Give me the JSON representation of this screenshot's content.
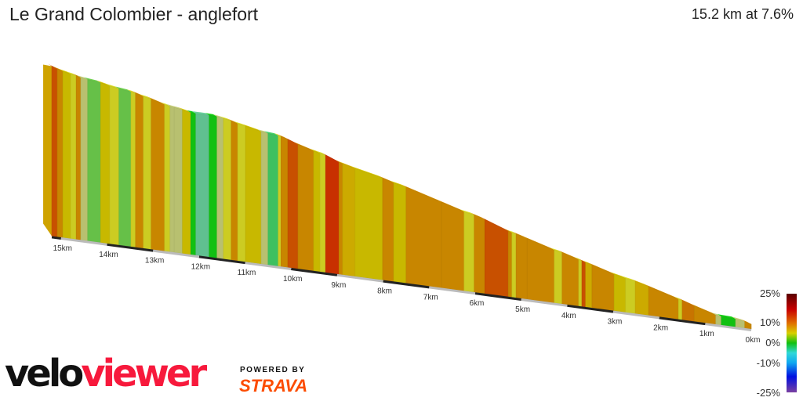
{
  "header": {
    "title": "Le Grand Colombier - anglefort",
    "summary": "15.2 km at 7.6%"
  },
  "legend": {
    "labels": [
      "25%",
      "10%",
      "0%",
      "-10%",
      "-25%"
    ],
    "stops": [
      {
        "value": 25,
        "color": "#5a0000"
      },
      {
        "value": 17,
        "color": "#c80000"
      },
      {
        "value": 10,
        "color": "#e07000"
      },
      {
        "value": 5,
        "color": "#d8d000"
      },
      {
        "value": 0,
        "color": "#10c010"
      },
      {
        "value": -5,
        "color": "#30d8d8"
      },
      {
        "value": -10,
        "color": "#10a8f0"
      },
      {
        "value": -17,
        "color": "#0010e0"
      },
      {
        "value": -25,
        "color": "#7a40a0"
      }
    ]
  },
  "branding": {
    "logo_part1": "velo",
    "logo_part2": "viewer",
    "powered_by": "POWERED BY",
    "strava": "STRAVA"
  },
  "chart_data": {
    "type": "area",
    "title": "Le Grand Colombier - anglefort",
    "xlabel": "",
    "ylabel": "",
    "x_unit": "km",
    "x_direction": "descending (15.2 km on left to 0 km on right)",
    "xlim": [
      15.2,
      0
    ],
    "total_distance_km": 15.2,
    "average_gradient_pct": 7.6,
    "tick_labels": [
      "15km",
      "14km",
      "13km",
      "12km",
      "11km",
      "10km",
      "9km",
      "8km",
      "7km",
      "6km",
      "5km",
      "4km",
      "3km",
      "2km",
      "1km",
      "0km"
    ],
    "tick_values": [
      15,
      14,
      13,
      12,
      11,
      10,
      9,
      8,
      7,
      6,
      5,
      4,
      3,
      2,
      1,
      0
    ],
    "gradient_colors": {
      "0": "#60c090",
      "1": "#12c012",
      "2": "#3ec060",
      "3": "#66c048",
      "4": "#b8c070",
      "5": "#cccc22",
      "6": "#c8b800",
      "7": "#ccaa00",
      "8": "#c88600",
      "9": "#c87400",
      "10": "#c85000",
      "11": "#c83000"
    },
    "segments": [
      {
        "from_km": 15.2,
        "to_km": 15.08,
        "gradient": 10
      },
      {
        "from_km": 15.08,
        "to_km": 14.96,
        "gradient": 8
      },
      {
        "from_km": 14.96,
        "to_km": 14.79,
        "gradient": 6
      },
      {
        "from_km": 14.79,
        "to_km": 14.67,
        "gradient": 5
      },
      {
        "from_km": 14.67,
        "to_km": 14.57,
        "gradient": 8
      },
      {
        "from_km": 14.57,
        "to_km": 14.42,
        "gradient": 4
      },
      {
        "from_km": 14.42,
        "to_km": 14.14,
        "gradient": 3
      },
      {
        "from_km": 14.14,
        "to_km": 13.94,
        "gradient": 6
      },
      {
        "from_km": 13.94,
        "to_km": 13.74,
        "gradient": 5
      },
      {
        "from_km": 13.74,
        "to_km": 13.48,
        "gradient": 3
      },
      {
        "from_km": 13.48,
        "to_km": 13.38,
        "gradient": 5
      },
      {
        "from_km": 13.38,
        "to_km": 13.21,
        "gradient": 8
      },
      {
        "from_km": 13.21,
        "to_km": 13.04,
        "gradient": 5
      },
      {
        "from_km": 13.04,
        "to_km": 12.75,
        "gradient": 8
      },
      {
        "from_km": 12.75,
        "to_km": 12.63,
        "gradient": 5
      },
      {
        "from_km": 12.63,
        "to_km": 12.54,
        "gradient": 4
      },
      {
        "from_km": 12.54,
        "to_km": 12.36,
        "gradient": 4
      },
      {
        "from_km": 12.36,
        "to_km": 12.18,
        "gradient": 6
      },
      {
        "from_km": 12.18,
        "to_km": 12.07,
        "gradient": 1
      },
      {
        "from_km": 12.07,
        "to_km": 11.78,
        "gradient": 0
      },
      {
        "from_km": 11.78,
        "to_km": 11.61,
        "gradient": 1
      },
      {
        "from_km": 11.61,
        "to_km": 11.47,
        "gradient": 4
      },
      {
        "from_km": 11.47,
        "to_km": 11.3,
        "gradient": 5
      },
      {
        "from_km": 11.3,
        "to_km": 11.16,
        "gradient": 8
      },
      {
        "from_km": 11.16,
        "to_km": 10.99,
        "gradient": 5
      },
      {
        "from_km": 10.99,
        "to_km": 10.65,
        "gradient": 6
      },
      {
        "from_km": 10.65,
        "to_km": 10.5,
        "gradient": 4
      },
      {
        "from_km": 10.5,
        "to_km": 10.28,
        "gradient": 2
      },
      {
        "from_km": 10.28,
        "to_km": 10.22,
        "gradient": 5
      },
      {
        "from_km": 10.22,
        "to_km": 10.07,
        "gradient": 8
      },
      {
        "from_km": 10.07,
        "to_km": 9.85,
        "gradient": 10
      },
      {
        "from_km": 9.85,
        "to_km": 9.51,
        "gradient": 8
      },
      {
        "from_km": 9.51,
        "to_km": 9.37,
        "gradient": 6
      },
      {
        "from_km": 9.37,
        "to_km": 9.25,
        "gradient": 5
      },
      {
        "from_km": 9.25,
        "to_km": 8.96,
        "gradient": 11
      },
      {
        "from_km": 8.96,
        "to_km": 8.88,
        "gradient": 8
      },
      {
        "from_km": 8.88,
        "to_km": 8.61,
        "gradient": 7
      },
      {
        "from_km": 8.61,
        "to_km": 8.01,
        "gradient": 6
      },
      {
        "from_km": 8.01,
        "to_km": 7.77,
        "gradient": 8
      },
      {
        "from_km": 7.77,
        "to_km": 7.5,
        "gradient": 6
      },
      {
        "from_km": 7.5,
        "to_km": 6.73,
        "gradient": 8
      },
      {
        "from_km": 6.73,
        "to_km": 6.24,
        "gradient": 8
      },
      {
        "from_km": 6.24,
        "to_km": 6.02,
        "gradient": 5
      },
      {
        "from_km": 6.02,
        "to_km": 5.79,
        "gradient": 8
      },
      {
        "from_km": 5.79,
        "to_km": 5.28,
        "gradient": 10
      },
      {
        "from_km": 5.28,
        "to_km": 5.2,
        "gradient": 8
      },
      {
        "from_km": 5.2,
        "to_km": 5.11,
        "gradient": 5
      },
      {
        "from_km": 5.11,
        "to_km": 4.87,
        "gradient": 8
      },
      {
        "from_km": 4.87,
        "to_km": 4.28,
        "gradient": 8
      },
      {
        "from_km": 4.28,
        "to_km": 4.11,
        "gradient": 5
      },
      {
        "from_km": 4.11,
        "to_km": 3.75,
        "gradient": 8
      },
      {
        "from_km": 3.75,
        "to_km": 3.68,
        "gradient": 5
      },
      {
        "from_km": 3.68,
        "to_km": 3.6,
        "gradient": 10
      },
      {
        "from_km": 3.6,
        "to_km": 3.46,
        "gradient": 7
      },
      {
        "from_km": 3.46,
        "to_km": 2.98,
        "gradient": 8
      },
      {
        "from_km": 2.98,
        "to_km": 2.73,
        "gradient": 6
      },
      {
        "from_km": 2.73,
        "to_km": 2.52,
        "gradient": 5
      },
      {
        "from_km": 2.52,
        "to_km": 2.23,
        "gradient": 7
      },
      {
        "from_km": 2.23,
        "to_km": 1.58,
        "gradient": 8
      },
      {
        "from_km": 1.58,
        "to_km": 1.5,
        "gradient": 5
      },
      {
        "from_km": 1.5,
        "to_km": 1.24,
        "gradient": 9
      },
      {
        "from_km": 1.24,
        "to_km": 0.77,
        "gradient": 8
      },
      {
        "from_km": 0.77,
        "to_km": 0.65,
        "gradient": 4
      },
      {
        "from_km": 0.65,
        "to_km": 0.34,
        "gradient": 1
      },
      {
        "from_km": 0.34,
        "to_km": 0.14,
        "gradient": 4
      },
      {
        "from_km": 0.14,
        "to_km": 0.0,
        "gradient": 8
      }
    ],
    "legend_placement": "bottom-right",
    "grid": false
  }
}
